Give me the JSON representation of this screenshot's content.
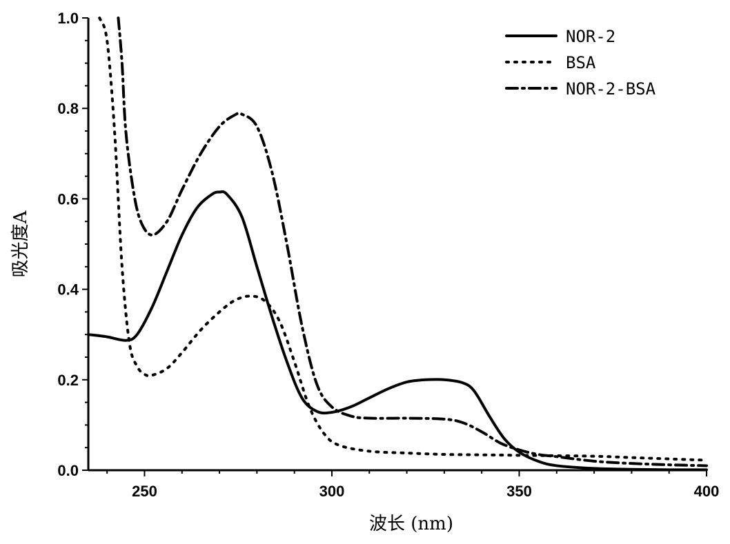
{
  "chart_data": {
    "type": "line",
    "xlabel": "波长 (nm)",
    "ylabel": "吸光度A",
    "xlim": [
      235,
      400
    ],
    "ylim": [
      0,
      1.0
    ],
    "xticks": [
      250,
      300,
      350,
      400
    ],
    "yticks": [
      "0.0",
      "0.2",
      "0.4",
      "0.6",
      "0.8",
      "1.0"
    ],
    "legend_position": "top-right",
    "series": [
      {
        "name": "NOR-2",
        "style": "solid",
        "x": [
          235,
          240,
          245,
          248,
          252,
          256,
          260,
          264,
          268,
          270,
          272,
          276,
          280,
          284,
          288,
          292,
          296,
          300,
          305,
          310,
          315,
          320,
          325,
          330,
          335,
          338,
          342,
          346,
          350,
          355,
          360,
          370,
          380,
          390,
          400
        ],
        "y": [
          0.3,
          0.295,
          0.287,
          0.3,
          0.36,
          0.44,
          0.52,
          0.58,
          0.61,
          0.615,
          0.61,
          0.56,
          0.45,
          0.34,
          0.24,
          0.16,
          0.13,
          0.128,
          0.14,
          0.16,
          0.18,
          0.195,
          0.2,
          0.2,
          0.193,
          0.175,
          0.12,
          0.07,
          0.04,
          0.02,
          0.01,
          0.004,
          0.002,
          0.001,
          0.001
        ]
      },
      {
        "name": "BSA",
        "style": "dot",
        "x": [
          238,
          240,
          242,
          244,
          246,
          248,
          250,
          252,
          256,
          260,
          265,
          270,
          274,
          278,
          282,
          286,
          290,
          294,
          298,
          302,
          310,
          320,
          330,
          340,
          350,
          360,
          370,
          380,
          390,
          400
        ],
        "y": [
          1.0,
          0.95,
          0.75,
          0.45,
          0.28,
          0.23,
          0.212,
          0.21,
          0.225,
          0.26,
          0.31,
          0.35,
          0.375,
          0.385,
          0.375,
          0.33,
          0.24,
          0.14,
          0.08,
          0.055,
          0.042,
          0.038,
          0.035,
          0.034,
          0.033,
          0.032,
          0.031,
          0.028,
          0.025,
          0.022
        ]
      },
      {
        "name": "NOR-2-BSA",
        "style": "dashdot",
        "x": [
          243,
          244,
          245,
          247,
          249,
          252,
          256,
          260,
          265,
          270,
          274,
          276,
          280,
          284,
          288,
          292,
          296,
          300,
          305,
          310,
          320,
          330,
          335,
          340,
          345,
          350,
          355,
          360,
          370,
          380,
          390,
          400
        ],
        "y": [
          1.0,
          0.9,
          0.75,
          0.62,
          0.55,
          0.52,
          0.55,
          0.62,
          0.7,
          0.76,
          0.785,
          0.787,
          0.76,
          0.66,
          0.5,
          0.32,
          0.19,
          0.14,
          0.12,
          0.115,
          0.115,
          0.113,
          0.105,
          0.085,
          0.06,
          0.045,
          0.035,
          0.03,
          0.02,
          0.015,
          0.012,
          0.01
        ]
      }
    ]
  }
}
